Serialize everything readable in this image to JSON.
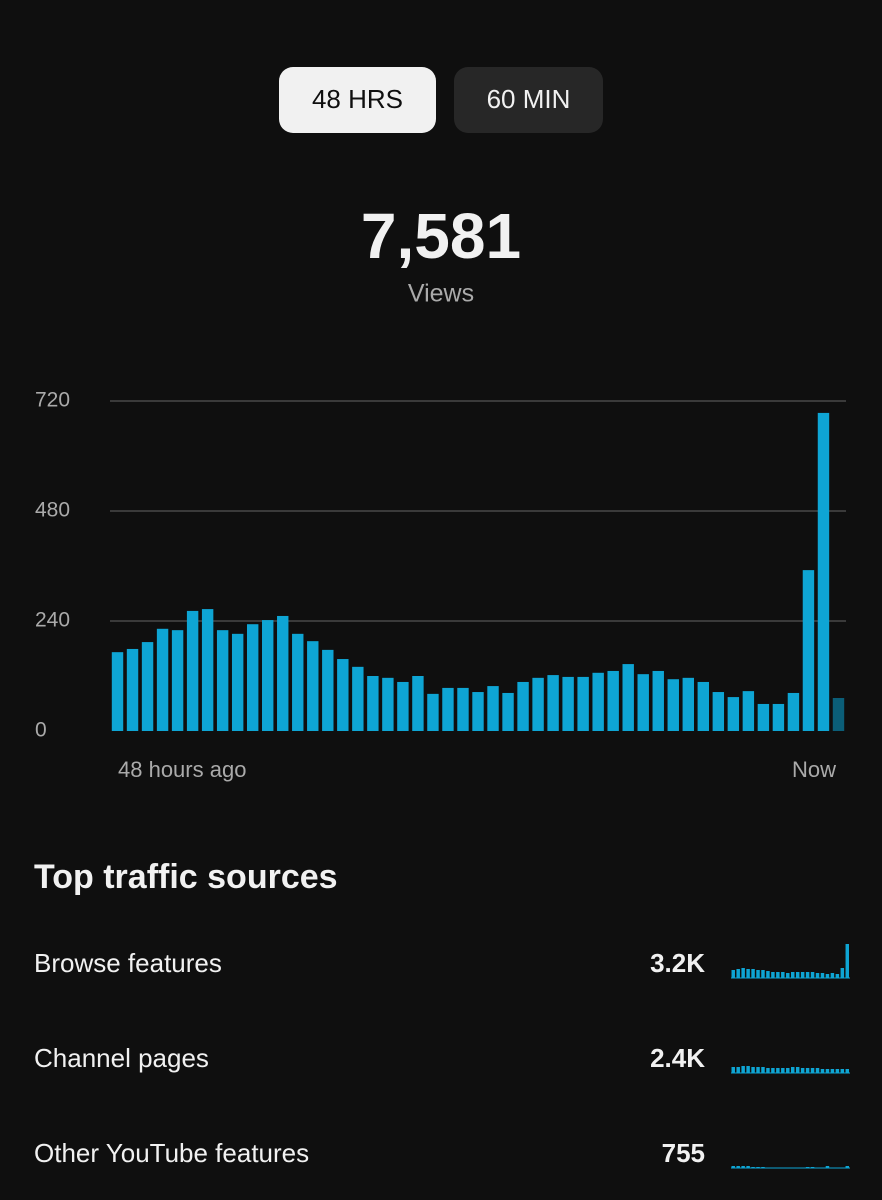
{
  "tabs": [
    "48 HRS",
    "60 MIN"
  ],
  "summary": {
    "total": "7,581",
    "label": "Views"
  },
  "chart_data": {
    "type": "bar",
    "categories": [
      null,
      null,
      null,
      null,
      null,
      null,
      null,
      null,
      null,
      null,
      null,
      null,
      null,
      null,
      null,
      null,
      null,
      null,
      null,
      null,
      null,
      null,
      null,
      null,
      null,
      null,
      null,
      null,
      null,
      null,
      null,
      null,
      null,
      null,
      null,
      null,
      null,
      null,
      null,
      null,
      null,
      null,
      null,
      null,
      null,
      null,
      null,
      null,
      null
    ],
    "values": [
      172,
      179,
      194,
      223,
      220,
      262,
      266,
      220,
      212,
      233,
      242,
      251,
      212,
      196,
      177,
      157,
      140,
      120,
      116,
      107,
      120,
      81,
      94,
      94,
      85,
      98,
      83,
      107,
      116,
      122,
      118,
      118,
      127,
      131,
      146,
      124,
      131,
      113,
      116,
      107,
      85,
      74,
      87,
      59,
      59,
      83,
      351,
      694,
      72
    ],
    "color": "#0ea5d4",
    "partial_color": "#0b5e78",
    "ylim": [
      0,
      720
    ],
    "yticks": [
      0,
      240,
      480,
      720
    ],
    "grid": true,
    "x_labels": {
      "start": "48 hours ago",
      "end": "Now"
    }
  },
  "traffic": {
    "title": "Top traffic sources",
    "spark_ylim": [
      0,
      34
    ],
    "rows": [
      {
        "name": "Browse features",
        "value": "3.2K",
        "trend": [
          8,
          9,
          10,
          9,
          9,
          8,
          8,
          7,
          6,
          6,
          6,
          5,
          6,
          6,
          6,
          6,
          6,
          5,
          5,
          4,
          5,
          4,
          10,
          34
        ]
      },
      {
        "name": "Channel pages",
        "value": "2.4K",
        "trend": [
          6,
          6,
          7,
          7,
          6,
          6,
          6,
          5,
          5,
          5,
          5,
          5,
          6,
          6,
          5,
          5,
          5,
          5,
          4,
          4,
          4,
          4,
          4,
          4
        ]
      },
      {
        "name": "Other YouTube features",
        "value": "755",
        "trend": [
          2,
          2,
          2,
          2,
          1,
          1,
          1,
          0,
          0,
          0,
          0,
          0,
          0,
          0,
          0,
          1,
          1,
          0,
          0,
          2,
          0,
          0,
          0,
          2
        ]
      }
    ]
  }
}
